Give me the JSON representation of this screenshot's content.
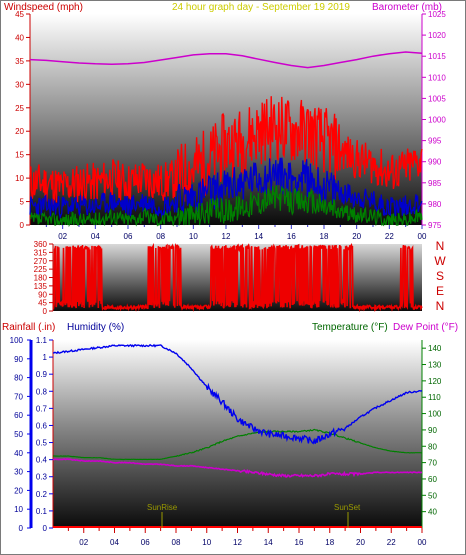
{
  "header": {
    "windspeed_label": "Windspeed (mph)",
    "date_label": "24 hour graph day - September 19 2019",
    "barometer_label": "Barometer (mb)"
  },
  "lower_header": {
    "rainfall_label": "Rainfall (.in)",
    "humidity_label": "Humidity (%)",
    "temperature_label": "Temperature (°F)",
    "dewpoint_label": "Dew Point (°F)"
  },
  "markers": {
    "sunrise": "SunRise",
    "sunset": "SunSet"
  },
  "colors": {
    "wind_max": "#ff0000",
    "wind_avg": "#0000cc",
    "wind_min": "#008000",
    "barometer": "#cc00cc",
    "direction": "#ee0000",
    "humidity": "#0000ee",
    "temperature": "#008000",
    "dewpoint": "#cc00cc",
    "rainfall": "#ff0000",
    "header_red": "#cc0000",
    "header_date": "#cccc00",
    "header_baro": "#cc00cc",
    "header_blue": "#000099",
    "header_green": "#006600",
    "marker_yellow": "#999900"
  },
  "chart_data": [
    {
      "type": "line",
      "title": "24 hour graph day - September 19 2019",
      "xlabel": "",
      "x_ticks": [
        "02",
        "04",
        "06",
        "08",
        "10",
        "12",
        "14",
        "16",
        "18",
        "20",
        "22",
        "00"
      ],
      "left_axis": {
        "label": "Windspeed (mph)",
        "ylim": [
          0,
          45
        ],
        "ticks": [
          0,
          5,
          10,
          15,
          20,
          25,
          30,
          35,
          40,
          45
        ]
      },
      "right_axis": {
        "label": "Barometer (mb)",
        "ylim": [
          975,
          1025
        ],
        "ticks": [
          975,
          980,
          985,
          990,
          995,
          1000,
          1005,
          1010,
          1015,
          1020,
          1025
        ]
      },
      "hours": [
        0,
        1,
        2,
        3,
        4,
        5,
        6,
        7,
        8,
        9,
        10,
        11,
        12,
        13,
        14,
        15,
        16,
        17,
        18,
        19,
        20,
        21,
        22,
        23,
        24
      ],
      "series": [
        {
          "name": "Barometer (mb)",
          "axis": "right",
          "values": [
            1014.2,
            1014.0,
            1013.7,
            1013.4,
            1013.2,
            1013.1,
            1013.2,
            1013.5,
            1014.1,
            1014.7,
            1015.3,
            1015.6,
            1015.6,
            1015.1,
            1014.3,
            1013.5,
            1012.8,
            1012.3,
            1012.8,
            1013.5,
            1014.2,
            1015.0,
            1015.6,
            1016.0,
            1015.7
          ]
        },
        {
          "name": "Windspeed max",
          "axis": "left",
          "values": [
            9,
            9,
            8,
            9,
            9,
            10,
            9,
            10,
            9,
            10,
            12,
            14,
            17,
            18,
            20,
            21,
            20,
            20,
            18,
            16,
            14,
            13,
            11,
            12,
            14
          ]
        },
        {
          "name": "Windspeed avg",
          "axis": "left",
          "values": [
            4,
            4,
            4,
            4,
            4,
            5,
            4,
            5,
            4,
            5,
            6,
            7,
            8,
            9,
            10,
            11,
            10,
            10,
            8,
            7,
            6,
            5,
            4,
            4,
            5
          ]
        },
        {
          "name": "Windspeed min",
          "axis": "left",
          "values": [
            1,
            1,
            1,
            1,
            1,
            2,
            1,
            2,
            1,
            2,
            2,
            3,
            3,
            4,
            5,
            6,
            5,
            5,
            4,
            3,
            2,
            2,
            1,
            1,
            2
          ]
        }
      ]
    },
    {
      "type": "scatter",
      "title": "",
      "x_ticks": [
        "02",
        "04",
        "06",
        "08",
        "10",
        "12",
        "14",
        "16",
        "18",
        "20",
        "22",
        "00"
      ],
      "ylabel": "Wind direction",
      "ylim": [
        0,
        360
      ],
      "y_ticks": [
        0,
        45,
        90,
        135,
        180,
        225,
        270,
        315,
        360
      ],
      "direction_letters": [
        "N",
        "W",
        "S",
        "E",
        "N"
      ]
    },
    {
      "type": "line",
      "title": "",
      "x_ticks": [
        "02",
        "04",
        "06",
        "08",
        "10",
        "12",
        "14",
        "16",
        "18",
        "20",
        "22",
        "00"
      ],
      "rainfall_axis": {
        "label": "Rainfall (.in)",
        "ylim": [
          0,
          1.1
        ],
        "ticks": [
          0,
          0.1,
          0.2,
          0.3,
          0.4,
          0.5,
          0.6,
          0.7,
          0.8,
          0.9,
          1,
          1.1
        ]
      },
      "humidity_axis": {
        "label": "Humidity (%)",
        "ylim": [
          0,
          100
        ],
        "ticks": [
          0,
          10,
          20,
          30,
          40,
          50,
          60,
          70,
          80,
          90,
          100
        ]
      },
      "temperature_axis": {
        "label": "Temperature (°F)",
        "ylim": [
          30,
          145
        ],
        "ticks": [
          40,
          50,
          60,
          70,
          80,
          90,
          100,
          110,
          120,
          130,
          140
        ]
      },
      "hours": [
        0,
        1,
        2,
        3,
        4,
        5,
        6,
        7,
        8,
        9,
        10,
        11,
        12,
        13,
        14,
        15,
        16,
        17,
        18,
        19,
        20,
        21,
        22,
        23,
        24
      ],
      "series": [
        {
          "name": "Humidity (%)",
          "axis": "humidity",
          "values": [
            93,
            94,
            95,
            96,
            97,
            97,
            97,
            97,
            93,
            85,
            75,
            67,
            58,
            53,
            50,
            49,
            48,
            46,
            50,
            53,
            59,
            64,
            68,
            72,
            73
          ]
        },
        {
          "name": "Temperature (°F)",
          "axis": "temperature",
          "values": [
            74,
            74,
            73,
            73,
            72,
            72,
            72,
            72,
            74,
            76,
            79,
            83,
            86,
            88,
            89,
            89,
            89,
            90,
            88,
            85,
            82,
            79,
            77,
            76,
            76
          ]
        },
        {
          "name": "Dew Point (°F)",
          "axis": "temperature",
          "values": [
            72,
            72,
            71,
            71,
            70,
            70,
            69,
            69,
            68,
            68,
            67,
            66,
            65,
            64,
            63,
            62,
            62,
            62,
            63,
            63,
            63,
            64,
            64,
            64,
            64
          ]
        },
        {
          "name": "Rainfall (.in)",
          "axis": "rainfall",
          "values": [
            0,
            0,
            0,
            0,
            0,
            0,
            0,
            0,
            0,
            0,
            0,
            0,
            0,
            0,
            0,
            0,
            0,
            0,
            0,
            0,
            0,
            0,
            0,
            0,
            0
          ]
        }
      ]
    }
  ]
}
